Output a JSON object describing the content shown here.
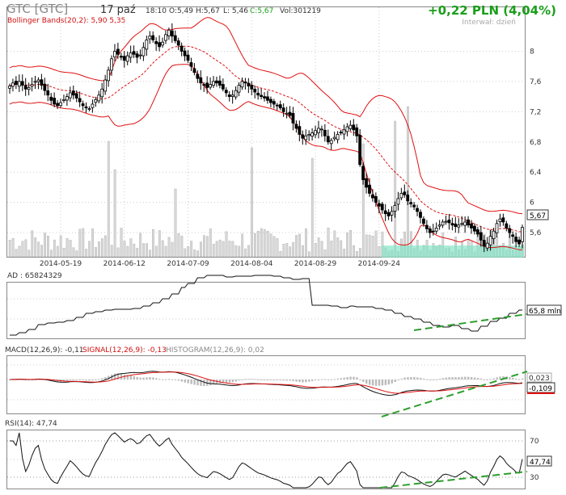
{
  "header": {
    "symbol": "GTC [GTC]",
    "date": "17 paź",
    "time": "18:10",
    "open": "O:5,49",
    "high": "H:5,67",
    "low": "L: 5,46",
    "close": "C:5,67",
    "volume": "Vol:301219",
    "change": "+0,22 PLN (4,04%)",
    "interval": "Interwał: dzień",
    "bollinger": "Bollinger Bands(20,2): 5,90 5,35"
  },
  "colors": {
    "up_change": "#1a9e1a",
    "band": "#e01010",
    "green_guide": "#2e9e2e",
    "highlight": "#7fe3c4",
    "grid": "#d0d0d0"
  },
  "chart_data": [
    {
      "type": "candlestick",
      "title": "GTC [GTC]",
      "x_ticks": [
        "2014-05-19",
        "2014-06-12",
        "2014-07-09",
        "2014-08-04",
        "2014-08-29",
        "2014-09-24"
      ],
      "y_ticks": [
        "8",
        "7,6",
        "7,2",
        "6,8",
        "6,4",
        "6",
        "5,6"
      ],
      "ylim": [
        5.28,
        8.55
      ],
      "last_price_label": "5,67",
      "grid": true,
      "closes": [
        7.54,
        7.58,
        7.56,
        7.6,
        7.55,
        7.5,
        7.52,
        7.56,
        7.6,
        7.62,
        7.55,
        7.48,
        7.42,
        7.35,
        7.3,
        7.28,
        7.32,
        7.36,
        7.4,
        7.45,
        7.42,
        7.38,
        7.33,
        7.28,
        7.25,
        7.24,
        7.3,
        7.36,
        7.42,
        7.5,
        7.62,
        7.75,
        7.9,
        8.0,
        7.96,
        7.92,
        7.88,
        7.94,
        7.98,
        7.96,
        7.92,
        7.95,
        8.05,
        8.15,
        8.2,
        8.15,
        8.1,
        8.06,
        8.12,
        8.22,
        8.28,
        8.2,
        8.14,
        8.08,
        8.0,
        7.94,
        7.88,
        7.8,
        7.72,
        7.64,
        7.58,
        7.55,
        7.52,
        7.56,
        7.6,
        7.58,
        7.55,
        7.5,
        7.45,
        7.4,
        7.42,
        7.48,
        7.55,
        7.6,
        7.58,
        7.54,
        7.5,
        7.46,
        7.42,
        7.4,
        7.38,
        7.35,
        7.32,
        7.3,
        7.28,
        7.25,
        7.2,
        7.18,
        7.15,
        7.05,
        6.98,
        6.9,
        6.85,
        6.88,
        6.9,
        6.92,
        6.95,
        6.98,
        6.97,
        6.88,
        6.8,
        6.82,
        6.86,
        6.9,
        6.92,
        6.96,
        7.0,
        7.02,
        6.96,
        6.88,
        6.5,
        6.3,
        6.2,
        6.12,
        6.06,
        6.0,
        5.95,
        5.9,
        5.85,
        5.82,
        5.88,
        5.96,
        6.05,
        6.12,
        6.1,
        6.02,
        5.98,
        5.94,
        5.88,
        5.8,
        5.72,
        5.65,
        5.6,
        5.62,
        5.66,
        5.7,
        5.74,
        5.75,
        5.73,
        5.7,
        5.68,
        5.7,
        5.72,
        5.74,
        5.7,
        5.66,
        5.62,
        5.58,
        5.5,
        5.42,
        5.46,
        5.55,
        5.62,
        5.72,
        5.78,
        5.74,
        5.66,
        5.6,
        5.55,
        5.48,
        5.45,
        5.67
      ]
    },
    {
      "type": "line",
      "title": "AD : 65824329",
      "last_value_label": "65,8 mln"
    },
    {
      "type": "line",
      "series": [
        {
          "name": "MACD(12,26,9): -0,11"
        },
        {
          "name": "SIGNAL(12,26,9): -0,13"
        },
        {
          "name": "HISTOGRAM(12,26,9): 0,02"
        }
      ],
      "right_labels": [
        "0,023",
        "-0,109"
      ]
    },
    {
      "type": "line",
      "title": "RSI(14): 47,74",
      "y_ticks": [
        "70",
        "30"
      ],
      "last_value_label": "47,74"
    }
  ]
}
